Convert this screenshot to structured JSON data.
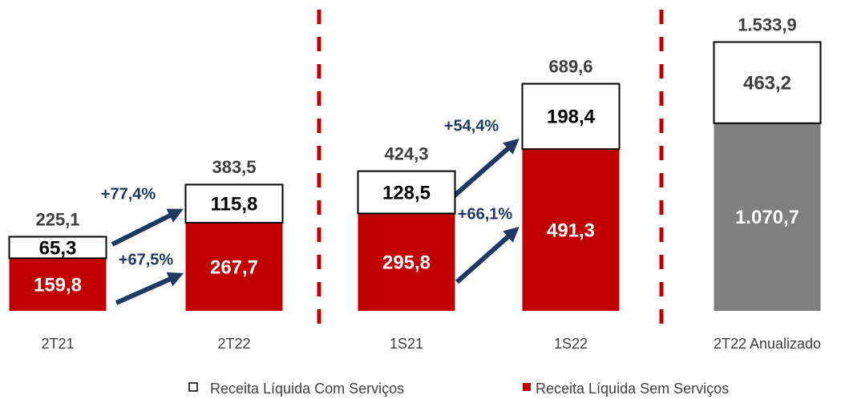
{
  "chart_data": [
    {
      "type": "stacked_bar",
      "categories": [
        "2T21",
        "2T22",
        "1S21",
        "1S22"
      ],
      "series": [
        {
          "name": "Receita Líquida Sem Serviços",
          "color": "#c00000",
          "values": [
            159.8,
            267.7,
            295.8,
            491.3
          ],
          "value_labels": [
            "159,8",
            "267,7",
            "295,8",
            "491,3"
          ]
        },
        {
          "name": "Receita Líquida Com Serviços",
          "color": "#ffffff",
          "values": [
            65.3,
            115.8,
            128.5,
            198.4
          ],
          "value_labels": [
            "65,3",
            "115,8",
            "128,5",
            "198,4"
          ]
        }
      ],
      "totals": [
        225.1,
        383.5,
        424.3,
        689.6
      ],
      "total_labels": [
        "225,1",
        "383,5",
        "424,3",
        "689,6"
      ],
      "annotations": [
        "+77,4%",
        "+67,5%",
        "+54,4%",
        "+66,1%"
      ],
      "ylim": [
        0,
        730
      ]
    },
    {
      "type": "stacked_bar",
      "categories": [
        "2T22 Anualizado"
      ],
      "series": [
        {
          "color": "#7f7f7f",
          "values": [
            1070.7
          ],
          "value_labels": [
            "1.070,7"
          ]
        },
        {
          "color": "#ffffff",
          "values": [
            463.2
          ],
          "value_labels": [
            "463,2"
          ]
        }
      ],
      "totals": [
        1533.9
      ],
      "total_labels": [
        "1.533,9"
      ],
      "ylim": [
        0,
        1600
      ]
    }
  ]
}
